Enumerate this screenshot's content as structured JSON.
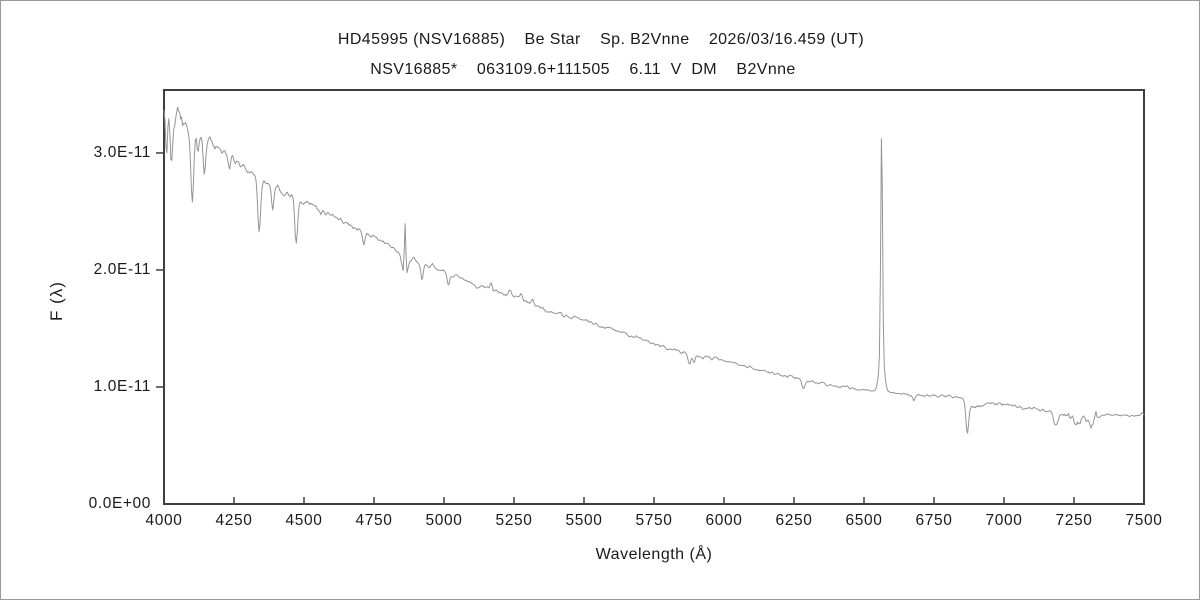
{
  "chart_data": {
    "type": "line",
    "title": "HD45995 (NSV16885)    Be Star    Sp. B2Vnne    2026/03/16.459 (UT)",
    "subtitle": "NSV16885*    063109.6+111505    6.11  V  DM    B2Vnne",
    "xlabel": "Wavelength (Å)",
    "ylabel": "F (λ)",
    "xlim": [
      4000,
      7500
    ],
    "ylim_1e11": [
      0,
      3.538
    ],
    "grid": false,
    "legend": "none",
    "axis_color": "#3f3f3f",
    "line_color": "#949494",
    "text_color": "#1a1a1a",
    "x_ticks": [
      {
        "value": 4000,
        "label": "4000"
      },
      {
        "value": 4250,
        "label": "4250"
      },
      {
        "value": 4500,
        "label": "4500"
      },
      {
        "value": 4750,
        "label": "4750"
      },
      {
        "value": 5000,
        "label": "5000"
      },
      {
        "value": 5250,
        "label": "5250"
      },
      {
        "value": 5500,
        "label": "5500"
      },
      {
        "value": 5750,
        "label": "5750"
      },
      {
        "value": 6000,
        "label": "6000"
      },
      {
        "value": 6250,
        "label": "6250"
      },
      {
        "value": 6500,
        "label": "6500"
      },
      {
        "value": 6750,
        "label": "6750"
      },
      {
        "value": 7000,
        "label": "7000"
      },
      {
        "value": 7250,
        "label": "7250"
      },
      {
        "value": 7500,
        "label": "7500"
      }
    ],
    "y_ticks": [
      {
        "value": 0,
        "label": "0.0E+00"
      },
      {
        "value": 1,
        "label": "1.0E-11"
      },
      {
        "value": 2,
        "label": "2.0E-11"
      },
      {
        "value": 3,
        "label": "3.0E-11"
      }
    ],
    "continuum_points_1e11": [
      [
        4000,
        3.3
      ],
      [
        4040,
        3.3
      ],
      [
        4080,
        3.22
      ],
      [
        4120,
        3.14
      ],
      [
        4160,
        3.1
      ],
      [
        4200,
        3.03
      ],
      [
        4250,
        2.94
      ],
      [
        4300,
        2.85
      ],
      [
        4350,
        2.77
      ],
      [
        4400,
        2.7
      ],
      [
        4450,
        2.63
      ],
      [
        4500,
        2.57
      ],
      [
        4550,
        2.52
      ],
      [
        4600,
        2.46
      ],
      [
        4650,
        2.4
      ],
      [
        4700,
        2.34
      ],
      [
        4750,
        2.28
      ],
      [
        4800,
        2.22
      ],
      [
        4850,
        2.14
      ],
      [
        4900,
        2.08
      ],
      [
        4950,
        2.04
      ],
      [
        5000,
        1.99
      ],
      [
        5050,
        1.94
      ],
      [
        5100,
        1.87
      ],
      [
        5150,
        1.85
      ],
      [
        5200,
        1.81
      ],
      [
        5250,
        1.77
      ],
      [
        5300,
        1.73
      ],
      [
        5350,
        1.67
      ],
      [
        5400,
        1.63
      ],
      [
        5450,
        1.6
      ],
      [
        5500,
        1.57
      ],
      [
        5550,
        1.53
      ],
      [
        5600,
        1.49
      ],
      [
        5650,
        1.45
      ],
      [
        5700,
        1.41
      ],
      [
        5750,
        1.37
      ],
      [
        5800,
        1.33
      ],
      [
        5850,
        1.3
      ],
      [
        5900,
        1.27
      ],
      [
        5950,
        1.25
      ],
      [
        6000,
        1.23
      ],
      [
        6050,
        1.19
      ],
      [
        6100,
        1.16
      ],
      [
        6150,
        1.13
      ],
      [
        6200,
        1.11
      ],
      [
        6250,
        1.08
      ],
      [
        6300,
        1.05
      ],
      [
        6350,
        1.03
      ],
      [
        6400,
        1.01
      ],
      [
        6450,
        0.995
      ],
      [
        6500,
        0.975
      ],
      [
        6550,
        0.96
      ],
      [
        6600,
        0.95
      ],
      [
        6650,
        0.94
      ],
      [
        6700,
        0.93
      ],
      [
        6750,
        0.925
      ],
      [
        6800,
        0.92
      ],
      [
        6850,
        0.91
      ],
      [
        6880,
        0.82
      ],
      [
        6910,
        0.84
      ],
      [
        6950,
        0.855
      ],
      [
        7000,
        0.86
      ],
      [
        7040,
        0.84
      ],
      [
        7100,
        0.81
      ],
      [
        7150,
        0.8
      ],
      [
        7210,
        0.77
      ],
      [
        7260,
        0.73
      ],
      [
        7310,
        0.71
      ],
      [
        7340,
        0.755
      ],
      [
        7400,
        0.765
      ],
      [
        7450,
        0.755
      ],
      [
        7500,
        0.765
      ]
    ],
    "features": [
      {
        "name": "He I 4009 absorption",
        "center": 4009,
        "sigma": 3,
        "amp": -0.3
      },
      {
        "name": "He I 4026 absorption",
        "center": 4026,
        "sigma": 4,
        "amp": -0.38
      },
      {
        "name": "H-delta 4101 absorption",
        "center": 4101,
        "sigma": 5,
        "amp": -0.62
      },
      {
        "name": "He I 4121 absorption",
        "center": 4121,
        "sigma": 3,
        "amp": -0.15
      },
      {
        "name": "He I 4144 absorption",
        "center": 4144,
        "sigma": 4,
        "amp": -0.28
      },
      {
        "name": "Fe 4233 absorption",
        "center": 4233,
        "sigma": 4,
        "amp": -0.07
      },
      {
        "name": "H-gamma 4340 absorption",
        "center": 4340,
        "sigma": 5,
        "amp": -0.48
      },
      {
        "name": "He I 4388 absorption",
        "center": 4388,
        "sigma": 4,
        "amp": -0.2
      },
      {
        "name": "He I 4472 absorption",
        "center": 4472,
        "sigma": 5,
        "amp": -0.38
      },
      {
        "name": "He I 4713 absorption",
        "center": 4713,
        "sigma": 4,
        "amp": -0.09
      },
      {
        "name": "H-beta absorption wings",
        "center": 4861,
        "sigma": 9,
        "amp": -0.2
      },
      {
        "name": "H-beta emission core",
        "center": 4861,
        "sigma": 2.6,
        "amp": 0.46
      },
      {
        "name": "He I 4922 absorption",
        "center": 4922,
        "sigma": 4,
        "amp": -0.16
      },
      {
        "name": "He I 5016 absorption",
        "center": 5016,
        "sigma": 4,
        "amp": -0.11
      },
      {
        "name": "Fe II 5169 emission",
        "center": 5169,
        "sigma": 4,
        "amp": 0.06
      },
      {
        "name": "Fe II 5235 emission",
        "center": 5235,
        "sigma": 4,
        "amp": 0.045
      },
      {
        "name": "Fe II 5276 emission",
        "center": 5276,
        "sigma": 4,
        "amp": 0.055
      },
      {
        "name": "Fe II 5317 emission",
        "center": 5317,
        "sigma": 4,
        "amp": 0.05
      },
      {
        "name": "He I 5876 absorption",
        "center": 5876,
        "sigma": 5,
        "amp": -0.1
      },
      {
        "name": "Na D 5893 absorption",
        "center": 5893,
        "sigma": 4,
        "amp": -0.08
      },
      {
        "name": "DIB 6283 absorption",
        "center": 6283,
        "sigma": 5,
        "amp": -0.08
      },
      {
        "name": "H-alpha emission base",
        "center": 6563,
        "sigma": 9,
        "amp": 0.33
      },
      {
        "name": "H-alpha emission peak",
        "center": 6563,
        "sigma": 3.2,
        "amp": 1.93
      },
      {
        "name": "He I 6678 absorption",
        "center": 6678,
        "sigma": 4,
        "amp": -0.06
      },
      {
        "name": "telluric O2 B-band 6870",
        "center": 6869,
        "sigma": 4.5,
        "amp": -0.26
      },
      {
        "name": "telluric H2O 7190",
        "center": 7185,
        "sigma": 8,
        "amp": -0.12
      },
      {
        "name": "telluric H2O 7255",
        "center": 7255,
        "sigma": 14,
        "amp": -0.045
      },
      {
        "name": "telluric H2O 7300",
        "center": 7300,
        "sigma": 9,
        "amp": -0.04
      }
    ],
    "noise_seed": 20260316,
    "noise_regions": [
      [
        4000,
        4070,
        0.075
      ],
      [
        4070,
        4300,
        0.034
      ],
      [
        4300,
        4600,
        0.028
      ],
      [
        4600,
        5000,
        0.02
      ],
      [
        5000,
        5500,
        0.015
      ],
      [
        5500,
        6000,
        0.013
      ],
      [
        6000,
        6520,
        0.011
      ],
      [
        6520,
        6620,
        0.006
      ],
      [
        6620,
        6855,
        0.011
      ],
      [
        6855,
        7160,
        0.014
      ],
      [
        7160,
        7230,
        0.02
      ],
      [
        7230,
        7330,
        0.048
      ],
      [
        7330,
        7500,
        0.012
      ]
    ]
  }
}
